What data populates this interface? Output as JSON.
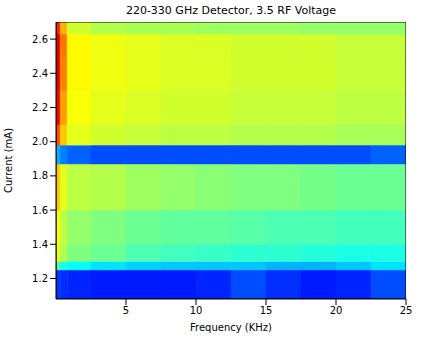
{
  "chart_data": {
    "type": "heatmap",
    "title": "220-330 GHz Detector, 3.5 RF Voltage",
    "x_label": "Frequency (KHz)",
    "y_label": "Current (mA)",
    "xlim": [
      0,
      25
    ],
    "ylim": [
      1.08,
      2.7
    ],
    "xticks": [
      5,
      10,
      15,
      20,
      25
    ],
    "yticks": [
      1.2,
      1.4,
      1.6,
      1.8,
      {
        "value": 2,
        "label": "2.0"
      },
      2.2,
      2.4,
      2.6
    ],
    "grid": false,
    "x_bins": [
      0,
      0.3,
      0.8,
      2.5,
      5,
      7.5,
      10,
      12.5,
      15,
      17.5,
      20,
      22.5,
      25
    ],
    "y_bins": [
      1.08,
      1.25,
      1.3,
      1.4,
      1.6,
      1.87,
      1.98,
      2.1,
      2.3,
      2.5,
      2.63,
      2.7
    ],
    "color_range": [
      0,
      1
    ],
    "cells": [
      [
        0.18,
        0.17,
        0.16,
        0.15,
        0.15,
        0.15,
        0.16,
        0.2,
        0.17,
        0.15,
        0.16,
        0.2
      ],
      [
        0.45,
        0.4,
        0.38,
        0.35,
        0.33,
        0.32,
        0.32,
        0.32,
        0.3,
        0.3,
        0.32,
        0.35
      ],
      [
        0.6,
        0.55,
        0.5,
        0.48,
        0.45,
        0.44,
        0.43,
        0.42,
        0.42,
        0.41,
        0.4,
        0.4
      ],
      [
        0.62,
        0.56,
        0.52,
        0.5,
        0.48,
        0.47,
        0.47,
        0.46,
        0.45,
        0.45,
        0.44,
        0.44
      ],
      [
        0.68,
        0.6,
        0.56,
        0.55,
        0.53,
        0.52,
        0.51,
        0.5,
        0.5,
        0.49,
        0.48,
        0.48
      ],
      [
        0.3,
        0.25,
        0.22,
        0.2,
        0.2,
        0.2,
        0.2,
        0.2,
        0.2,
        0.2,
        0.2,
        0.22
      ],
      [
        0.8,
        0.68,
        0.6,
        0.58,
        0.57,
        0.56,
        0.56,
        0.55,
        0.55,
        0.55,
        0.54,
        0.54
      ],
      [
        0.88,
        0.72,
        0.62,
        0.6,
        0.59,
        0.58,
        0.58,
        0.57,
        0.57,
        0.57,
        0.56,
        0.56
      ],
      [
        0.9,
        0.75,
        0.63,
        0.61,
        0.6,
        0.59,
        0.59,
        0.58,
        0.58,
        0.58,
        0.57,
        0.57
      ],
      [
        0.9,
        0.76,
        0.63,
        0.61,
        0.6,
        0.59,
        0.59,
        0.58,
        0.58,
        0.58,
        0.57,
        0.57
      ],
      [
        0.85,
        0.7,
        0.58,
        0.55,
        0.54,
        0.54,
        0.53,
        0.53,
        0.53,
        0.52,
        0.52,
        0.52
      ]
    ]
  }
}
